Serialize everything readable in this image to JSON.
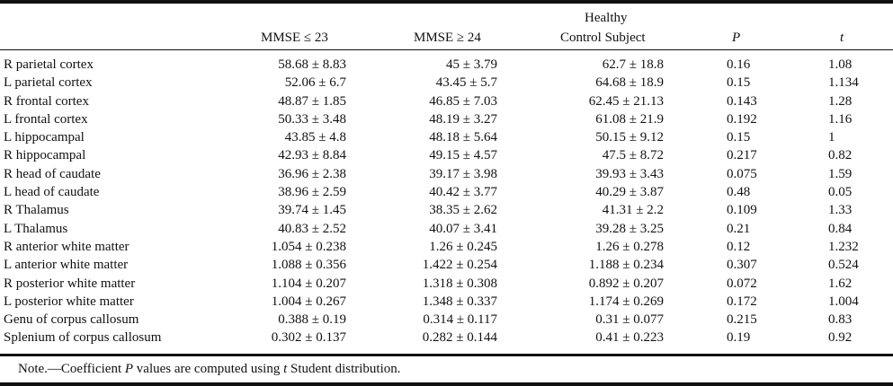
{
  "header": {
    "col_mmse_low": "MMSE ≤ 23",
    "col_mmse_high": "MMSE ≥ 24",
    "col_healthy_line1": "Healthy",
    "col_healthy_line2": "Control Subject",
    "col_p": "P",
    "col_t": "t"
  },
  "rows": [
    {
      "label": "R parietal cortex",
      "mmse_low": "58.68 ± 8.83",
      "mmse_high": "45 ± 3.79",
      "healthy": "62.7 ± 18.8",
      "p": "0.16",
      "t": "1.08"
    },
    {
      "label": "L parietal cortex",
      "mmse_low": "52.06 ± 6.7",
      "mmse_high": "43.45 ± 5.7",
      "healthy": "64.68 ± 18.9",
      "p": "0.15",
      "t": "1.134"
    },
    {
      "label": "R frontal cortex",
      "mmse_low": "48.87 ± 1.85",
      "mmse_high": "46.85 ± 7.03",
      "healthy": "62.45 ± 21.13",
      "p": "0.143",
      "t": "1.28"
    },
    {
      "label": "L frontal cortex",
      "mmse_low": "50.33 ± 3.48",
      "mmse_high": "48.19 ± 3.27",
      "healthy": "61.08 ± 21.9",
      "p": "0.192",
      "t": "1.16"
    },
    {
      "label": "L hippocampal",
      "mmse_low": "43.85 ± 4.8",
      "mmse_high": "48.18 ± 5.64",
      "healthy": "50.15 ± 9.12",
      "p": "0.15",
      "t": "1"
    },
    {
      "label": "R hippocampal",
      "mmse_low": "42.93 ± 8.84",
      "mmse_high": "49.15 ± 4.57",
      "healthy": "47.5 ± 8.72",
      "p": "0.217",
      "t": "0.82"
    },
    {
      "label": "R head of caudate",
      "mmse_low": "36.96 ± 2.38",
      "mmse_high": "39.17 ± 3.98",
      "healthy": "39.93 ± 3.43",
      "p": "0.075",
      "t": "1.59"
    },
    {
      "label": "L head of caudate",
      "mmse_low": "38.96 ± 2.59",
      "mmse_high": "40.42 ± 3.77",
      "healthy": "40.29 ± 3.87",
      "p": "0.48",
      "t": "0.05"
    },
    {
      "label": "R Thalamus",
      "mmse_low": "39.74 ± 1.45",
      "mmse_high": "38.35 ± 2.62",
      "healthy": "41.31 ± 2.2",
      "p": "0.109",
      "t": "1.33"
    },
    {
      "label": "L Thalamus",
      "mmse_low": "40.83 ± 2.52",
      "mmse_high": "40.07 ± 3.41",
      "healthy": "39.28 ± 3.25",
      "p": "0.21",
      "t": "0.84"
    },
    {
      "label": "R anterior white matter",
      "mmse_low": "1.054 ± 0.238",
      "mmse_high": "1.26 ± 0.245",
      "healthy": "1.26 ± 0.278",
      "p": "0.12",
      "t": "1.232"
    },
    {
      "label": "L anterior white matter",
      "mmse_low": "1.088 ± 0.356",
      "mmse_high": "1.422 ± 0.254",
      "healthy": "1.188 ± 0.234",
      "p": "0.307",
      "t": "0.524"
    },
    {
      "label": "R posterior white matter",
      "mmse_low": "1.104 ± 0.207",
      "mmse_high": "1.318 ± 0.308",
      "healthy": "0.892 ± 0.207",
      "p": "0.072",
      "t": "1.62"
    },
    {
      "label": "L posterior white matter",
      "mmse_low": "1.004 ± 0.267",
      "mmse_high": "1.348 ± 0.337",
      "healthy": "1.174 ± 0.269",
      "p": "0.172",
      "t": "1.004"
    },
    {
      "label": "Genu of corpus callosum",
      "mmse_low": "0.388 ± 0.19",
      "mmse_high": "0.314 ± 0.117",
      "healthy": "0.31 ± 0.077",
      "p": "0.215",
      "t": "0.83"
    },
    {
      "label": "Splenium of corpus callosum",
      "mmse_low": "0.302 ± 0.137",
      "mmse_high": "0.282 ± 0.144",
      "healthy": "0.41 ± 0.223",
      "p": "0.19",
      "t": "0.92"
    }
  ],
  "note": {
    "prefix": "Note.—Coefficient ",
    "p_symbol": "P",
    "middle": " values are computed using ",
    "t_symbol": "t",
    "suffix": " Student distribution."
  }
}
